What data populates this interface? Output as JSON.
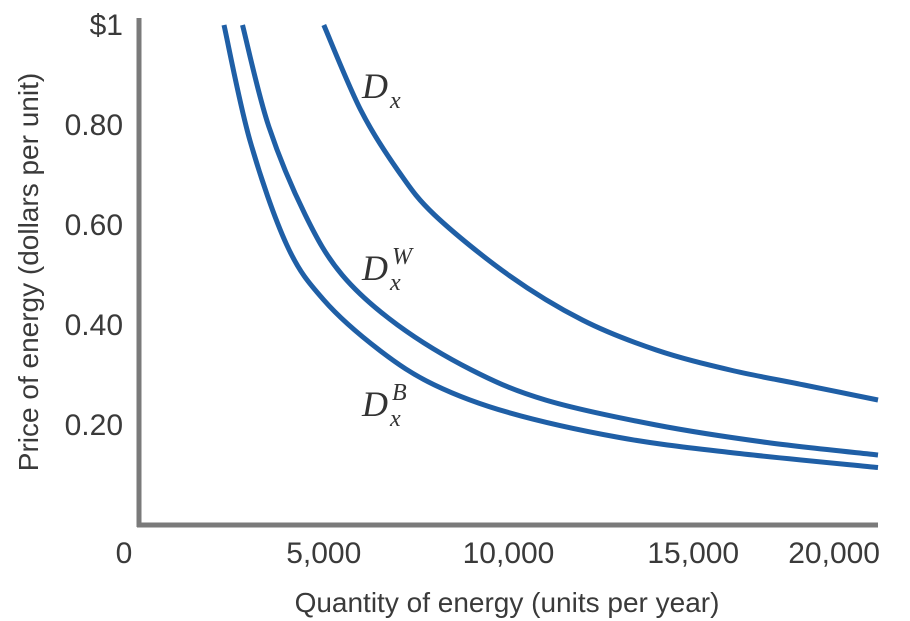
{
  "chart_data": {
    "type": "line",
    "title": "",
    "xlabel": "Quantity of energy (units per year)",
    "ylabel": "Price of energy (dollars per unit)",
    "xlim": [
      0,
      20000
    ],
    "ylim": [
      0,
      1
    ],
    "x_ticks": [
      {
        "value": 0,
        "label": "0"
      },
      {
        "value": 5000,
        "label": "5,000"
      },
      {
        "value": 10000,
        "label": "10,000"
      },
      {
        "value": 15000,
        "label": "15,000"
      },
      {
        "value": 20000,
        "label": "20,000"
      }
    ],
    "y_ticks": [
      {
        "value": 1,
        "label": "$1"
      },
      {
        "value": 0.8,
        "label": "0.80"
      },
      {
        "value": 0.6,
        "label": "0.60"
      },
      {
        "value": 0.4,
        "label": "0.40"
      },
      {
        "value": 0.2,
        "label": "0.20"
      }
    ],
    "grid": false,
    "legend": "none",
    "colors": {
      "series": "#1f5fa6",
      "axis": "#7a7a7a",
      "text": "#3a3a3a"
    },
    "series": [
      {
        "id": "Dx",
        "label_main": "D",
        "label_sub": "x",
        "label_sup": "",
        "points": [
          [
            5000,
            1.0
          ],
          [
            6000,
            0.83
          ],
          [
            7000,
            0.71
          ],
          [
            8000,
            0.62
          ],
          [
            10000,
            0.5
          ],
          [
            12000,
            0.41
          ],
          [
            14000,
            0.35
          ],
          [
            16000,
            0.31
          ],
          [
            18000,
            0.28
          ],
          [
            20000,
            0.25
          ]
        ]
      },
      {
        "id": "DxW",
        "label_main": "D",
        "label_sub": "x",
        "label_sup": "W",
        "points": [
          [
            2800,
            1.0
          ],
          [
            3500,
            0.8
          ],
          [
            4500,
            0.62
          ],
          [
            5500,
            0.5
          ],
          [
            7000,
            0.4
          ],
          [
            9000,
            0.31
          ],
          [
            11000,
            0.25
          ],
          [
            14000,
            0.2
          ],
          [
            17000,
            0.165
          ],
          [
            20000,
            0.14
          ]
        ]
      },
      {
        "id": "DxB",
        "label_main": "D",
        "label_sub": "x",
        "label_sup": "B",
        "points": [
          [
            2300,
            1.0
          ],
          [
            3000,
            0.77
          ],
          [
            4000,
            0.56
          ],
          [
            5000,
            0.45
          ],
          [
            6500,
            0.35
          ],
          [
            8000,
            0.28
          ],
          [
            10000,
            0.225
          ],
          [
            13000,
            0.175
          ],
          [
            16000,
            0.145
          ],
          [
            20000,
            0.115
          ]
        ]
      }
    ]
  }
}
